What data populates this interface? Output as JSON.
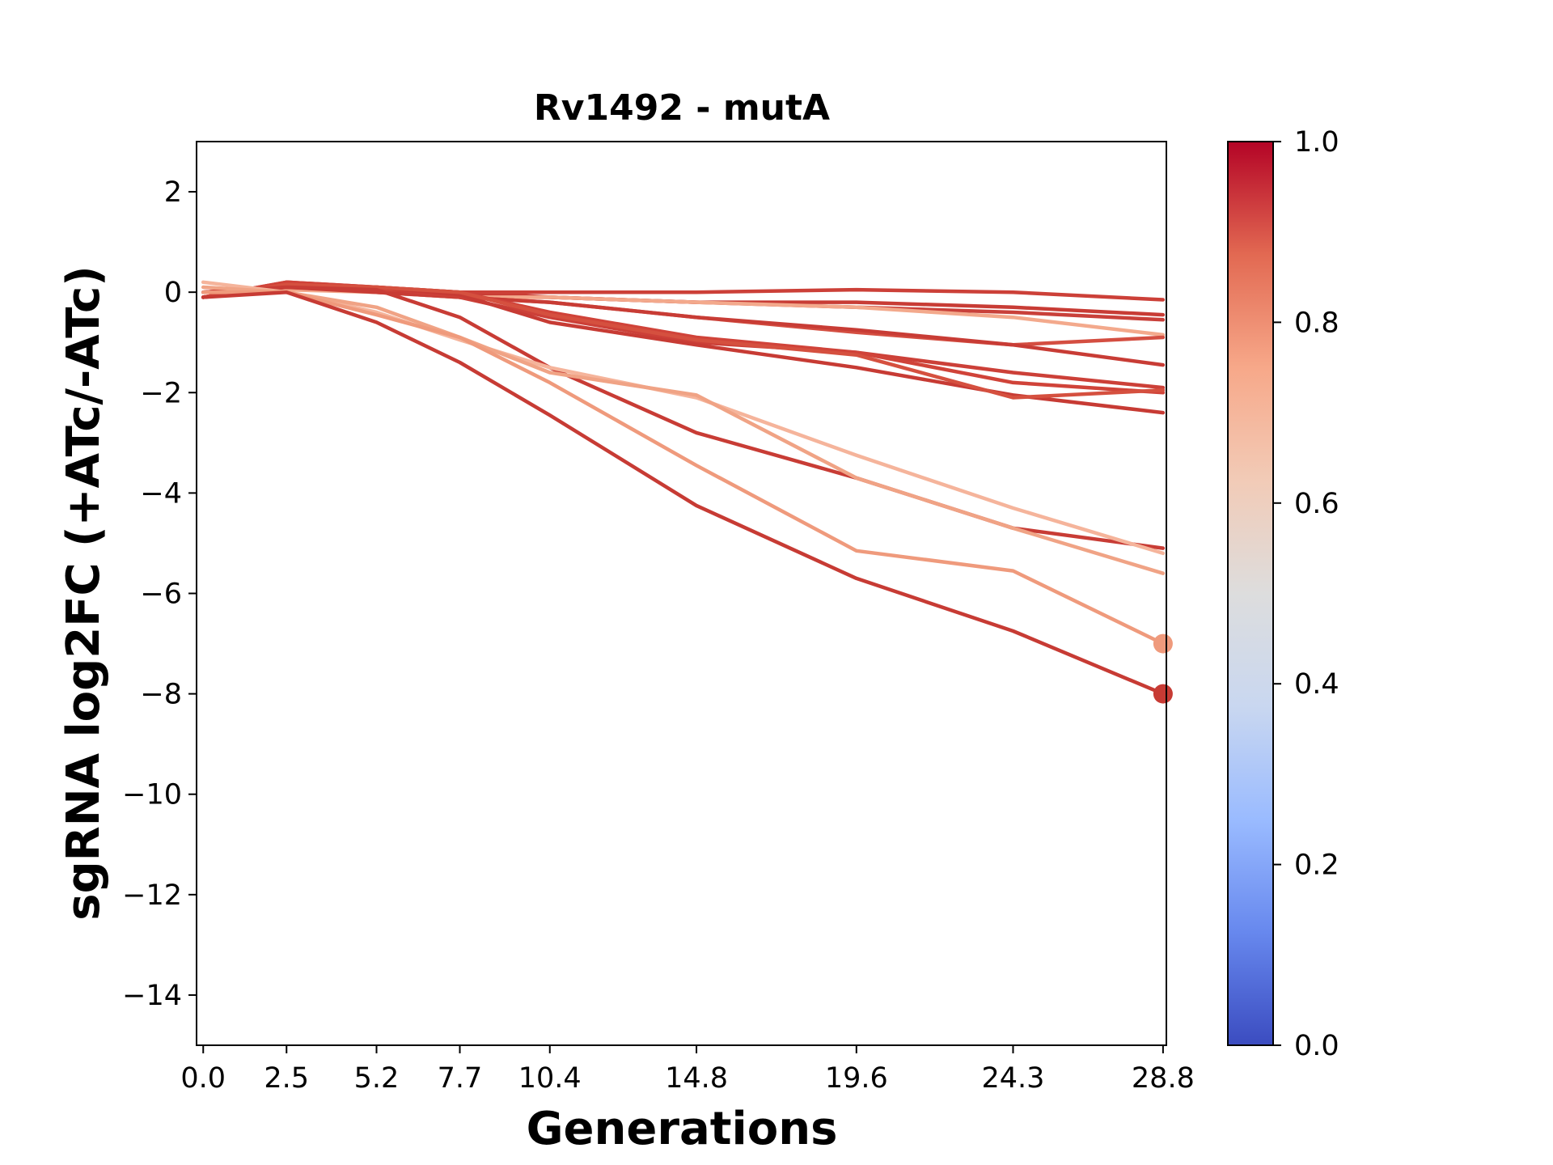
{
  "chart_data": {
    "type": "line",
    "title": "Rv1492 - mutA",
    "xlabel": "Generations",
    "ylabel": "sgRNA log2FC (+ATc/-ATc)",
    "x": [
      0.0,
      2.5,
      5.2,
      7.7,
      10.4,
      14.8,
      19.6,
      24.3,
      28.8
    ],
    "xticklabels": [
      "0.0",
      "2.5",
      "5.2",
      "7.7",
      "10.4",
      "14.8",
      "19.6",
      "24.3",
      "28.8"
    ],
    "xlim": [
      -0.2,
      28.9
    ],
    "ylim": [
      -15,
      3
    ],
    "yticks": [
      2,
      0,
      -2,
      -4,
      -6,
      -8,
      -10,
      -12,
      -14
    ],
    "yticklabels": [
      "2",
      "0",
      "−2",
      "−4",
      "−6",
      "−8",
      "−10",
      "−12",
      "−14"
    ],
    "grid": false,
    "colormap": "coolwarm",
    "colorbar": {
      "range": [
        0,
        1
      ],
      "ticks": [
        0.0,
        0.2,
        0.4,
        0.6,
        0.8,
        1.0
      ],
      "ticklabels": [
        "0.0",
        "0.2",
        "0.4",
        "0.6",
        "0.8",
        "1.0"
      ],
      "stops": [
        "#3b4cc0",
        "#6788ee",
        "#9abbff",
        "#c9d7f0",
        "#dddddd",
        "#f2cbb7",
        "#f7a889",
        "#e26952",
        "#b40426"
      ]
    },
    "series": [
      {
        "color": "#c83c35",
        "values": [
          -0.1,
          0.2,
          0.1,
          0.0,
          -0.1,
          -0.2,
          -0.2,
          -0.3,
          -0.45
        ],
        "marker": false
      },
      {
        "color": "#cc4038",
        "values": [
          0.0,
          0.1,
          0.05,
          0.0,
          0.0,
          0.0,
          0.05,
          0.0,
          -0.15
        ],
        "marker": false
      },
      {
        "color": "#c9403a",
        "values": [
          -0.1,
          0.1,
          0.0,
          -0.1,
          -0.1,
          -0.2,
          -0.3,
          -0.4,
          -0.55
        ],
        "marker": false
      },
      {
        "color": "#f3a98c",
        "values": [
          0.0,
          0.05,
          0.0,
          -0.1,
          -0.1,
          -0.2,
          -0.3,
          -0.5,
          -0.85
        ],
        "marker": false
      },
      {
        "color": "#d44e41",
        "values": [
          -0.1,
          0.15,
          0.05,
          -0.1,
          -0.2,
          -0.5,
          -0.8,
          -1.05,
          -0.9
        ],
        "marker": false
      },
      {
        "color": "#c83c35",
        "values": [
          -0.1,
          0.1,
          0.0,
          -0.1,
          -0.2,
          -0.5,
          -0.75,
          -1.05,
          -1.45
        ],
        "marker": false
      },
      {
        "color": "#cc4038",
        "values": [
          0.0,
          0.1,
          0.1,
          -0.1,
          -0.5,
          -1.0,
          -1.2,
          -1.6,
          -1.9
        ],
        "marker": false
      },
      {
        "color": "#c73b34",
        "values": [
          0.0,
          0.1,
          0.1,
          -0.05,
          -0.6,
          -1.05,
          -1.5,
          -2.05,
          -2.4
        ],
        "marker": false
      },
      {
        "color": "#d04339",
        "values": [
          -0.1,
          0.2,
          0.1,
          0.0,
          -0.4,
          -0.9,
          -1.2,
          -1.8,
          -2.0
        ],
        "marker": false
      },
      {
        "color": "#d5503f",
        "values": [
          -0.1,
          0.15,
          0.1,
          0.0,
          -0.45,
          -0.95,
          -1.25,
          -2.1,
          -1.95
        ],
        "marker": false
      },
      {
        "color": "#c83c35",
        "values": [
          0.0,
          0.1,
          0.05,
          -0.5,
          -1.5,
          -2.8,
          -3.7,
          -4.7,
          -5.1
        ],
        "marker": false
      },
      {
        "color": "#f5b49b",
        "values": [
          0.2,
          0.0,
          -0.4,
          -0.95,
          -1.5,
          -2.1,
          -3.25,
          -4.3,
          -5.2
        ],
        "marker": false
      },
      {
        "color": "#f0a385",
        "values": [
          0.1,
          0.0,
          -0.3,
          -0.9,
          -1.6,
          -2.05,
          -3.7,
          -4.7,
          -5.6
        ],
        "marker": false
      },
      {
        "color": "#ef9a7c",
        "values": [
          0.0,
          0.0,
          -0.45,
          -0.9,
          -1.8,
          -3.45,
          -5.15,
          -5.55,
          -7.0
        ],
        "marker": true
      },
      {
        "color": "#c73b34",
        "values": [
          -0.1,
          0.0,
          -0.6,
          -1.4,
          -2.45,
          -4.25,
          -5.7,
          -6.75,
          -8.0
        ],
        "marker": true
      }
    ]
  }
}
